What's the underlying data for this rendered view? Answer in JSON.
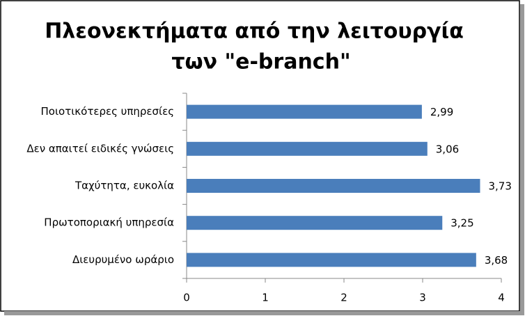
{
  "chart_data": {
    "type": "hbar",
    "title": [
      "Πλεονεκτήματα από την λειτουργία",
      "των \"e-branch\""
    ],
    "categories": [
      "Ποιοτικότερες υπηρεσίες",
      "Δεν απαιτεί ειδικές γνώσεις",
      "Ταχύτητα, ευκολία",
      "Πρωτοποριακή υπηρεσία",
      "Διευρυμένο ωράριο"
    ],
    "values": [
      2.99,
      3.06,
      3.73,
      3.25,
      3.68
    ],
    "value_labels": [
      "2,99",
      "3,06",
      "3,73",
      "3,25",
      "3,68"
    ],
    "color": "#4a7ebb",
    "xlim": [
      0,
      4
    ],
    "xticks": [
      0,
      1,
      2,
      3,
      4
    ],
    "grid": false
  }
}
